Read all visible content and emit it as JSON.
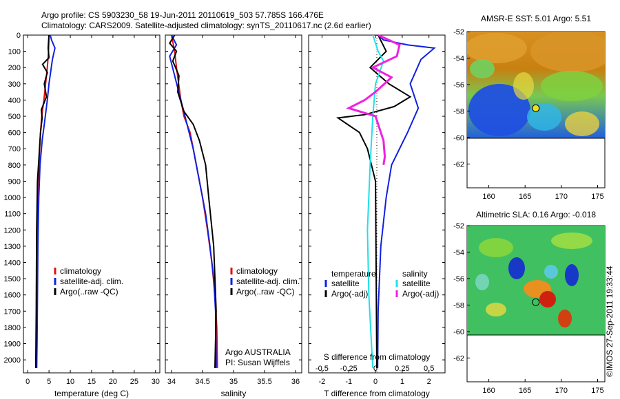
{
  "header": {
    "line1": "Argo profile: CS 5903230_58 19-Jun-2011 20110619_503 57.785S 166.476E",
    "line2": "Climatology: CARS2009. Satellite-adjusted climatology: synTS_20110617.nc (2.6d earlier)"
  },
  "colors": {
    "climatology": "#e01010",
    "satellite": "#1020e0",
    "argo": "#000000",
    "satellite_salinity": "#20e0e8",
    "argo_adj_salinity": "#f020e0"
  },
  "chart_data": [
    {
      "type": "line",
      "name": "temperature",
      "xlabel": "temperature (deg C)",
      "xlim": [
        -1,
        31
      ],
      "ylim": [
        0,
        2080
      ],
      "xticks": [
        "0",
        "5",
        "10",
        "15",
        "20",
        "25",
        "30"
      ],
      "yticks": [
        "0",
        "100",
        "200",
        "300",
        "400",
        "500",
        "600",
        "700",
        "800",
        "900",
        "1000",
        "1100",
        "1200",
        "1300",
        "1400",
        "1500",
        "1600",
        "1700",
        "1800",
        "1900",
        "2000"
      ],
      "legend": [
        "climatology",
        "satellite-adj. clim.",
        "Argo(..raw -QC)"
      ],
      "legend_loc": "lower-right",
      "series": [
        {
          "name": "climatology",
          "color": "#e01010",
          "x": [
            5.0,
            4.9,
            4.6,
            4.2,
            3.8,
            3.3,
            3.0,
            2.8,
            2.6,
            2.4,
            2.3,
            2.2,
            2.1,
            2.1
          ],
          "y": [
            0,
            100,
            200,
            300,
            400,
            500,
            600,
            700,
            900,
            1100,
            1300,
            1500,
            1800,
            2050
          ]
        },
        {
          "name": "satellite-adj. clim.",
          "color": "#1020e0",
          "x": [
            5.3,
            5.6,
            6.4,
            5.8,
            5.0,
            4.6,
            3.9,
            3.4,
            2.9,
            2.6,
            2.4,
            2.3,
            2.2,
            2.1
          ],
          "y": [
            0,
            30,
            80,
            150,
            300,
            400,
            550,
            650,
            800,
            1000,
            1300,
            1600,
            1900,
            2050
          ]
        },
        {
          "name": "Argo(..raw -QC)",
          "color": "#000000",
          "x": [
            5.0,
            4.8,
            5.0,
            3.5,
            4.6,
            3.9,
            4.4,
            3.2,
            3.4,
            3.0,
            2.3,
            2.1,
            2.0,
            1.9
          ],
          "y": [
            0,
            80,
            140,
            180,
            230,
            300,
            380,
            460,
            510,
            600,
            900,
            1200,
            1700,
            2050
          ]
        }
      ]
    },
    {
      "type": "line",
      "name": "salinity",
      "xlabel": "salinity",
      "xlim": [
        33.9,
        36.1
      ],
      "ylim": [
        0,
        2080
      ],
      "xticks": [
        "34",
        "34.5",
        "35",
        "35.5",
        "36"
      ],
      "legend": [
        "climatology",
        "satellite-adj. clim.",
        "Argo(..raw -QC)"
      ],
      "legend_loc": "lower-right",
      "annotation": [
        "Argo AUSTRALIA",
        "PI: Susan Wijffels"
      ],
      "series": [
        {
          "name": "climatology",
          "color": "#e01010",
          "x": [
            34.0,
            34.05,
            34.08,
            34.15,
            34.2,
            34.3,
            34.4,
            34.5,
            34.58,
            34.65,
            34.7,
            34.73,
            34.74
          ],
          "y": [
            0,
            100,
            200,
            400,
            500,
            600,
            800,
            1000,
            1200,
            1400,
            1600,
            1800,
            2050
          ]
        },
        {
          "name": "satellite-adj. clim.",
          "color": "#1020e0",
          "x": [
            34.0,
            34.08,
            33.97,
            34.05,
            34.15,
            34.25,
            34.35,
            34.45,
            34.55,
            34.62,
            34.68,
            34.71,
            34.72
          ],
          "y": [
            0,
            60,
            130,
            250,
            400,
            550,
            700,
            900,
            1100,
            1300,
            1500,
            1700,
            2050
          ]
        },
        {
          "name": "Argo(..raw -QC)",
          "color": "#000000",
          "x": [
            34.05,
            33.97,
            34.08,
            34.02,
            34.12,
            34.1,
            34.2,
            34.35,
            34.45,
            34.55,
            34.6,
            34.68,
            34.72,
            34.7
          ],
          "y": [
            0,
            50,
            100,
            160,
            250,
            350,
            470,
            550,
            650,
            800,
            1000,
            1300,
            1700,
            2050
          ]
        }
      ]
    },
    {
      "type": "line",
      "name": "difference",
      "xlabel": "T difference from climatology",
      "xlabel_top": "S difference from climatology",
      "xlim": [
        -2.5,
        2.6
      ],
      "ylim": [
        0,
        2080
      ],
      "xticks": [
        "-2",
        "-1",
        "0",
        "1",
        "2"
      ],
      "xticks_top": [
        "-0.5",
        "-0.25",
        "0",
        "0.25",
        "0.5"
      ],
      "legend_headers": [
        "temperature",
        "salinity"
      ],
      "legend": [
        "satellite",
        "Argo(-adj)",
        "satellite",
        "Argo(-adj)"
      ],
      "legend_loc": "lower-center",
      "series": [
        {
          "name": "temperature satellite",
          "color": "#1020e0",
          "x": [
            0.1,
            0.3,
            1.2,
            2.2,
            1.7,
            1.3,
            1.6,
            1.2,
            0.9,
            0.6,
            0.4,
            0.2,
            0.1,
            0.08
          ],
          "y": [
            0,
            30,
            60,
            80,
            150,
            300,
            450,
            600,
            700,
            800,
            1000,
            1300,
            1700,
            2050
          ]
        },
        {
          "name": "temperature Argo(-adj)",
          "color": "#000000",
          "x": [
            0.1,
            0.4,
            -0.2,
            0.5,
            1.3,
            0.7,
            -0.4,
            -1.4,
            -0.6,
            -0.3,
            0.0,
            0.05
          ],
          "y": [
            0,
            100,
            200,
            300,
            380,
            440,
            490,
            510,
            600,
            700,
            900,
            2050
          ]
        },
        {
          "name": "salinity satellite",
          "color": "#20e0e8",
          "x": [
            -0.1,
            0.1,
            0.3,
            0.0,
            -0.1,
            -0.2,
            -0.3,
            -0.25,
            -0.15,
            -0.1
          ],
          "y": [
            0,
            100,
            160,
            300,
            500,
            800,
            1200,
            1600,
            1900,
            2050
          ]
        },
        {
          "name": "salinity Argo(-adj)",
          "color": "#f020e0",
          "x": [
            0.1,
            0.9,
            0.8,
            -0.1,
            0.6,
            0.0,
            -0.4,
            -1.0,
            0.0,
            0.3,
            0.35,
            0.3
          ],
          "y": [
            0,
            60,
            130,
            200,
            260,
            350,
            400,
            450,
            500,
            650,
            750,
            800
          ]
        }
      ]
    },
    {
      "type": "heatmap",
      "name": "sst-map",
      "title": "AMSR-E SST: 5.01  Argo: 5.51",
      "xticks": [
        "160",
        "165",
        "170",
        "175"
      ],
      "yticks": [
        "-52",
        "-54",
        "-56",
        "-58",
        "-60",
        "-62"
      ],
      "xlim": [
        157,
        176
      ],
      "ylim": [
        -63.8,
        -52
      ],
      "marker": {
        "lon": 166.476,
        "lat": -57.785
      }
    },
    {
      "type": "heatmap",
      "name": "sla-map",
      "title": "Altimetric SLA: 0.16  Argo: -0.018",
      "xticks": [
        "160",
        "165",
        "170",
        "175"
      ],
      "yticks": [
        "-52",
        "-54",
        "-56",
        "-58",
        "-60",
        "-62"
      ],
      "xlim": [
        157,
        176
      ],
      "ylim": [
        -63.8,
        -52
      ],
      "marker": {
        "lon": 166.476,
        "lat": -57.785
      }
    }
  ],
  "credit": "©IMOS 27-Sep-2011 19:33:44"
}
